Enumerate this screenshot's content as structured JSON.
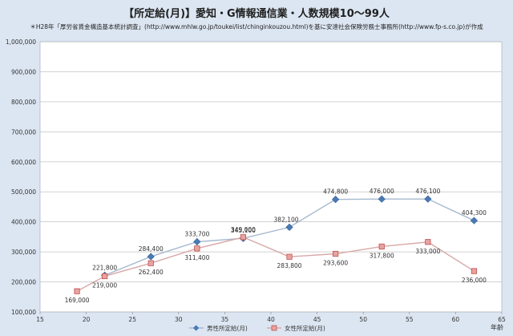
{
  "title": "【所定給(月)】愛知・G情報通信業・人数規模10～99人",
  "subtitle": "＊H28年「厚労省賃金構造基本統計調査」(http://www.mhlw.go.jp/toukei/list/chinginkouzou.html)を基に安達社会保険労務士事務所(http://www.fp-s.co.jp)が作成",
  "colors": {
    "background": "#dce6f2",
    "plot": "#ffffff",
    "male": "#4a7ab5",
    "female": "#c0504d",
    "female_marker": "#e6a3a1"
  },
  "chart_data": {
    "type": "line",
    "title": "【所定給(月)】愛知・G情報通信業・人数規模10～99人",
    "xlabel": "年齢",
    "ylabel": "",
    "xlim": [
      15,
      65
    ],
    "ylim": [
      100000,
      1000000
    ],
    "x_ticks": [
      "15",
      "20",
      "25",
      "30",
      "35",
      "40",
      "45",
      "50",
      "55",
      "60",
      "65"
    ],
    "y_ticks": [
      "100,000",
      "200,000",
      "300,000",
      "400,000",
      "500,000",
      "600,000",
      "700,000",
      "800,000",
      "900,000",
      "1,000,000"
    ],
    "grid": true,
    "legend_position": "bottom",
    "series": [
      {
        "name": "男性所定給(月)",
        "x": [
          22,
          27,
          32,
          37,
          42,
          47,
          52,
          57,
          62
        ],
        "values": [
          221800,
          284400,
          333700,
          345100,
          382100,
          474800,
          476000,
          476100,
          404300
        ],
        "labels": [
          "221,800",
          "284,400",
          "333,700",
          "345,100",
          "382,100",
          "474,800",
          "476,000",
          "476,100",
          "404,300"
        ]
      },
      {
        "name": "女性所定給(月)",
        "x": [
          19,
          22,
          27,
          32,
          37,
          42,
          47,
          52,
          57,
          62
        ],
        "values": [
          169000,
          219000,
          262400,
          311400,
          349000,
          283800,
          293600,
          317800,
          333000,
          236000
        ],
        "labels": [
          "169,000",
          "219,000",
          "262,400",
          "311,400",
          "349,000",
          "283,800",
          "293,600",
          "317,800",
          "333,000",
          "236,000"
        ]
      }
    ]
  }
}
